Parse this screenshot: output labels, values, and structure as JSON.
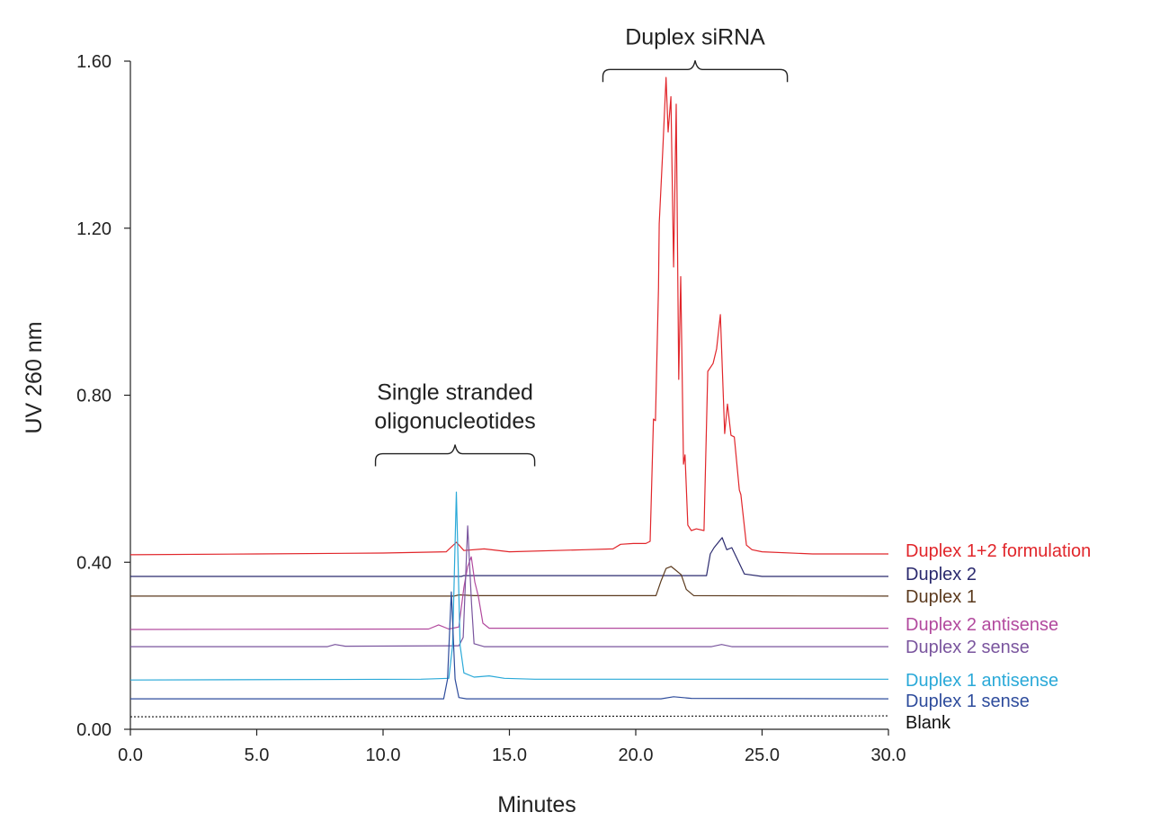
{
  "chart_data": {
    "type": "line",
    "title": "",
    "xlabel": "Minutes",
    "ylabel": "UV 260 nm",
    "xlim": [
      0,
      30
    ],
    "ylim": [
      0,
      1.6
    ],
    "x_ticks": [
      "0.0",
      "5.0",
      "10.0",
      "15.0",
      "20.0",
      "25.0",
      "30.0"
    ],
    "x_tick_values": [
      0,
      5,
      10,
      15,
      20,
      25,
      30
    ],
    "y_ticks": [
      "0.00",
      "0.40",
      "0.80",
      "1.20",
      "1.60"
    ],
    "y_tick_values": [
      0,
      0.4,
      0.8,
      1.2,
      1.6
    ],
    "grid": false,
    "legend_placement": "right, inline labels",
    "annotations": [
      {
        "text": [
          "Duplex siRNA"
        ],
        "bracket_x": [
          18.7,
          26.0
        ],
        "bracket_y": 1.58
      },
      {
        "text": [
          "Single stranded",
          "oligonucleotides"
        ],
        "bracket_x": [
          9.7,
          16.0
        ],
        "bracket_y": 0.66
      }
    ],
    "series": [
      {
        "name": "Duplex 1+2 formulation",
        "color": "#e1262b",
        "x": [
          0,
          5,
          10,
          12.5,
          12.9,
          13.2,
          14.0,
          15,
          18,
          19.1,
          19.4,
          19.9,
          20.4,
          20.57,
          20.7,
          20.78,
          20.9,
          20.93,
          21.07,
          21.2,
          21.28,
          21.39,
          21.5,
          21.6,
          21.7,
          21.78,
          21.89,
          21.95,
          22.06,
          22.2,
          22.4,
          22.7,
          22.85,
          23.06,
          23.2,
          23.35,
          23.52,
          23.63,
          23.77,
          23.9,
          24.1,
          24.16,
          24.38,
          24.6,
          25,
          27,
          30
        ],
        "y": [
          0.418,
          0.42,
          0.422,
          0.425,
          0.448,
          0.428,
          0.432,
          0.425,
          0.43,
          0.432,
          0.443,
          0.445,
          0.445,
          0.45,
          0.743,
          0.739,
          1.057,
          1.211,
          1.389,
          1.561,
          1.43,
          1.515,
          1.107,
          1.497,
          0.838,
          1.084,
          0.635,
          0.657,
          0.489,
          0.476,
          0.48,
          0.476,
          0.857,
          0.876,
          0.911,
          0.993,
          0.708,
          0.779,
          0.704,
          0.7,
          0.573,
          0.562,
          0.441,
          0.43,
          0.425,
          0.42,
          0.42
        ]
      },
      {
        "name": "Duplex 2",
        "color": "#2b2a6e",
        "x": [
          0,
          13.1,
          13.2,
          22.8,
          22.95,
          23.1,
          23.42,
          23.6,
          23.8,
          24.0,
          24.3,
          25,
          30
        ],
        "y": [
          0.366,
          0.366,
          0.368,
          0.368,
          0.42,
          0.435,
          0.459,
          0.43,
          0.435,
          0.41,
          0.372,
          0.366,
          0.366
        ]
      },
      {
        "name": "Duplex 1",
        "color": "#5b3a1e",
        "x": [
          0,
          12.8,
          13.0,
          13.6,
          20.8,
          21.0,
          21.2,
          21.4,
          21.6,
          21.8,
          22.0,
          22.3,
          30
        ],
        "y": [
          0.319,
          0.319,
          0.322,
          0.32,
          0.32,
          0.355,
          0.385,
          0.39,
          0.38,
          0.37,
          0.335,
          0.32,
          0.319
        ]
      },
      {
        "name": "Duplex 2 antisense",
        "color": "#b24a9e",
        "x": [
          0,
          11.8,
          12.2,
          12.6,
          13.0,
          13.2,
          13.35,
          13.49,
          13.63,
          13.77,
          13.95,
          14.2,
          30
        ],
        "y": [
          0.239,
          0.24,
          0.25,
          0.24,
          0.245,
          0.34,
          0.39,
          0.413,
          0.353,
          0.319,
          0.254,
          0.242,
          0.242
        ]
      },
      {
        "name": "Duplex 2 sense",
        "color": "#7a559e",
        "x": [
          0,
          7.8,
          8.1,
          8.5,
          13.0,
          13.17,
          13.35,
          13.5,
          13.6,
          14,
          23,
          23.4,
          23.8,
          30
        ],
        "y": [
          0.198,
          0.198,
          0.203,
          0.199,
          0.2,
          0.22,
          0.487,
          0.3,
          0.205,
          0.198,
          0.198,
          0.203,
          0.198,
          0.198
        ]
      },
      {
        "name": "Duplex 1 antisense",
        "color": "#2aa9d8",
        "x": [
          0,
          11.5,
          12.6,
          12.75,
          12.9,
          13.05,
          13.2,
          13.6,
          14.2,
          14.8,
          16,
          30
        ],
        "y": [
          0.118,
          0.12,
          0.122,
          0.2,
          0.568,
          0.2,
          0.135,
          0.125,
          0.128,
          0.122,
          0.12,
          0.12
        ]
      },
      {
        "name": "Duplex 1 sense",
        "color": "#2e4c9c",
        "x": [
          0,
          12.4,
          12.55,
          12.7,
          12.85,
          13.0,
          13.3,
          21.0,
          21.5,
          22.2,
          30
        ],
        "y": [
          0.073,
          0.073,
          0.12,
          0.329,
          0.12,
          0.076,
          0.073,
          0.073,
          0.078,
          0.074,
          0.073
        ]
      },
      {
        "name": "Blank",
        "color": "#111111",
        "dashed": true,
        "x": [
          0,
          30
        ],
        "y": [
          0.03,
          0.032
        ]
      }
    ]
  }
}
